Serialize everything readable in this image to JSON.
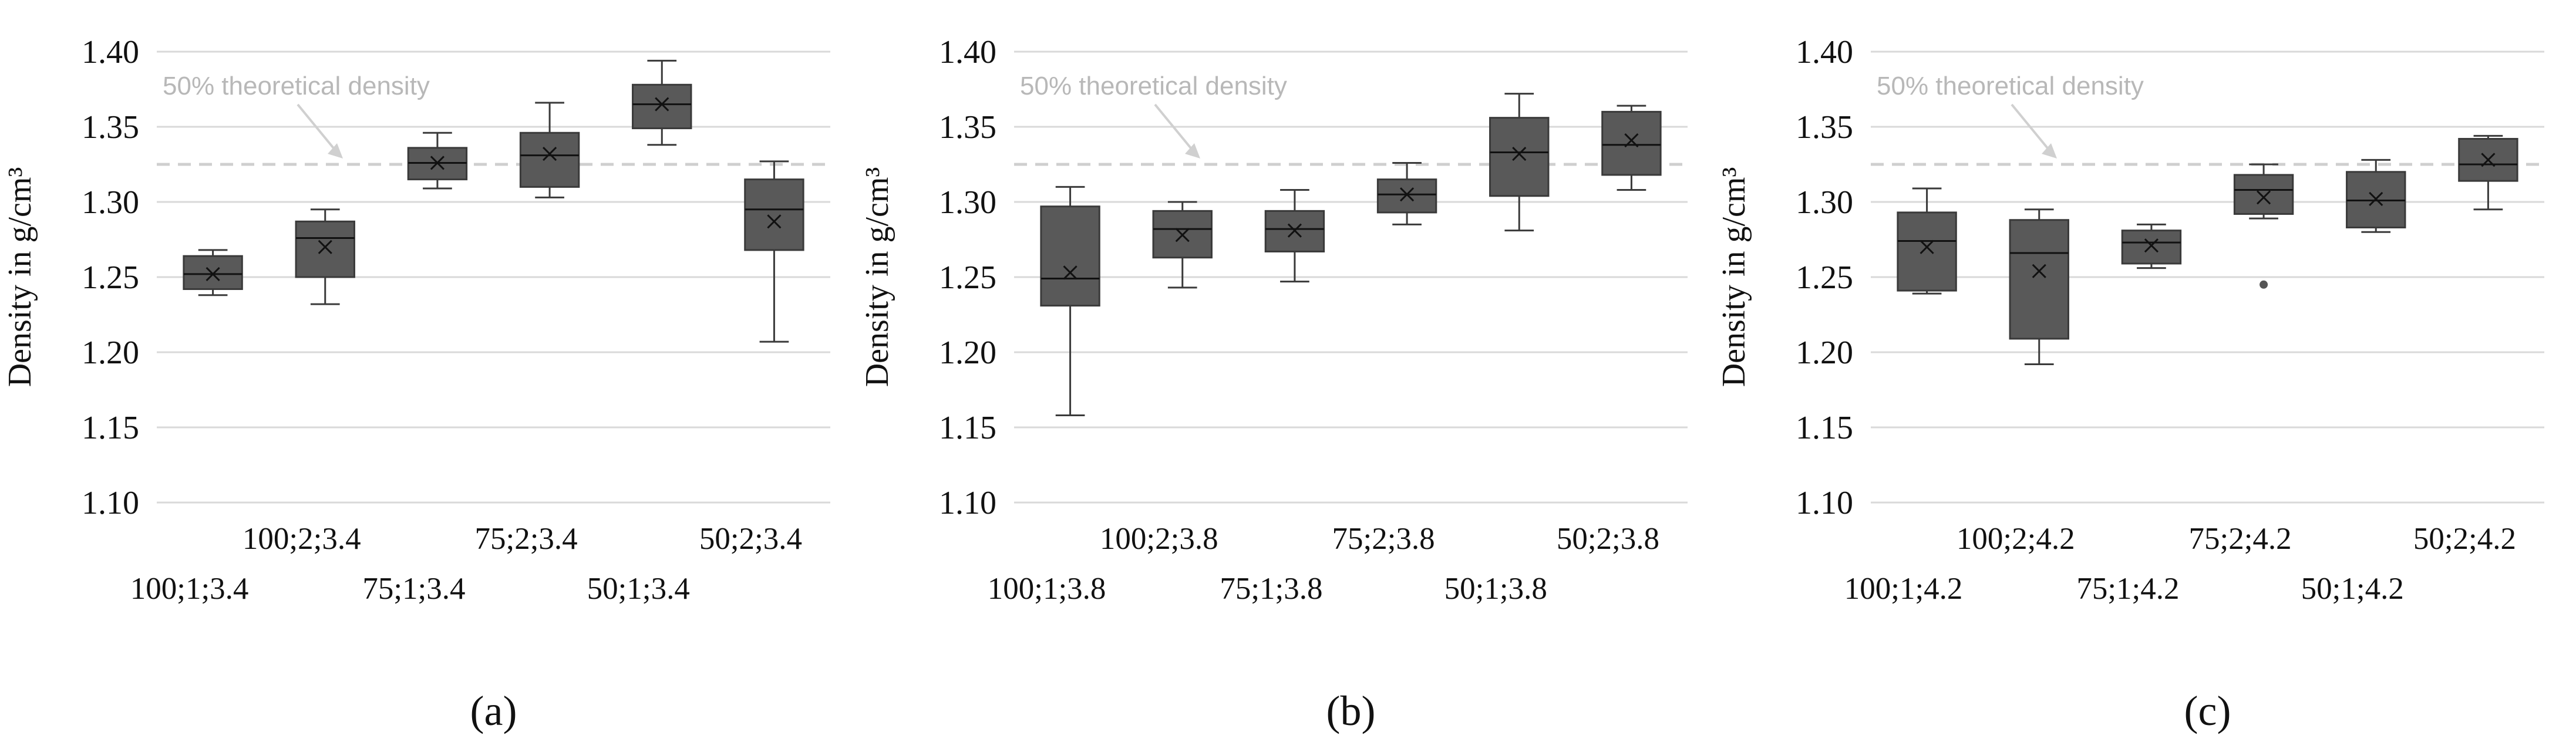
{
  "chart_data": [
    {
      "type": "box",
      "panel_label": "(a)",
      "ylabel": "Density in g/cm³",
      "ylim": [
        1.1,
        1.4
      ],
      "yticks": [
        "1.10",
        "1.15",
        "1.20",
        "1.25",
        "1.30",
        "1.35",
        "1.40"
      ],
      "grid": true,
      "reference_line": {
        "value": 1.325,
        "label": "50% theoretical density"
      },
      "categories": [
        "100;1;3.4",
        "100;2;3.4",
        "75;1;3.4",
        "75;2;3.4",
        "50;1;3.4",
        "50;2;3.4"
      ],
      "boxes": [
        {
          "min": 1.238,
          "q1": 1.242,
          "median": 1.252,
          "q3": 1.264,
          "max": 1.268,
          "mean": 1.252,
          "outliers": []
        },
        {
          "min": 1.232,
          "q1": 1.25,
          "median": 1.276,
          "q3": 1.287,
          "max": 1.295,
          "mean": 1.27,
          "outliers": []
        },
        {
          "min": 1.309,
          "q1": 1.315,
          "median": 1.326,
          "q3": 1.336,
          "max": 1.346,
          "mean": 1.326,
          "outliers": []
        },
        {
          "min": 1.303,
          "q1": 1.31,
          "median": 1.331,
          "q3": 1.346,
          "max": 1.366,
          "mean": 1.332,
          "outliers": []
        },
        {
          "min": 1.338,
          "q1": 1.349,
          "median": 1.365,
          "q3": 1.378,
          "max": 1.394,
          "mean": 1.365,
          "outliers": []
        },
        {
          "min": 1.207,
          "q1": 1.268,
          "median": 1.295,
          "q3": 1.315,
          "max": 1.327,
          "mean": 1.287,
          "outliers": []
        }
      ]
    },
    {
      "type": "box",
      "panel_label": "(b)",
      "ylabel": "Density in g/cm³",
      "ylim": [
        1.1,
        1.4
      ],
      "yticks": [
        "1.10",
        "1.15",
        "1.20",
        "1.25",
        "1.30",
        "1.35",
        "1.40"
      ],
      "grid": true,
      "reference_line": {
        "value": 1.325,
        "label": "50% theoretical density"
      },
      "categories": [
        "100;1;3.8",
        "100;2;3.8",
        "75;1;3.8",
        "75;2;3.8",
        "50;1;3.8",
        "50;2;3.8"
      ],
      "boxes": [
        {
          "min": 1.158,
          "q1": 1.231,
          "median": 1.249,
          "q3": 1.297,
          "max": 1.31,
          "mean": 1.253,
          "outliers": []
        },
        {
          "min": 1.243,
          "q1": 1.263,
          "median": 1.282,
          "q3": 1.294,
          "max": 1.3,
          "mean": 1.278,
          "outliers": []
        },
        {
          "min": 1.247,
          "q1": 1.267,
          "median": 1.282,
          "q3": 1.294,
          "max": 1.308,
          "mean": 1.281,
          "outliers": []
        },
        {
          "min": 1.285,
          "q1": 1.293,
          "median": 1.305,
          "q3": 1.315,
          "max": 1.326,
          "mean": 1.305,
          "outliers": []
        },
        {
          "min": 1.281,
          "q1": 1.304,
          "median": 1.333,
          "q3": 1.356,
          "max": 1.372,
          "mean": 1.332,
          "outliers": []
        },
        {
          "min": 1.308,
          "q1": 1.318,
          "median": 1.338,
          "q3": 1.36,
          "max": 1.364,
          "mean": 1.341,
          "outliers": []
        }
      ]
    },
    {
      "type": "box",
      "panel_label": "(c)",
      "ylabel": "Density in g/cm³",
      "ylim": [
        1.1,
        1.4
      ],
      "yticks": [
        "1.10",
        "1.15",
        "1.20",
        "1.25",
        "1.30",
        "1.35",
        "1.40"
      ],
      "grid": true,
      "reference_line": {
        "value": 1.325,
        "label": "50% theoretical density"
      },
      "categories": [
        "100;1;4.2",
        "100;2;4.2",
        "75;1;4.2",
        "75;2;4.2",
        "50;1;4.2",
        "50;2;4.2"
      ],
      "boxes": [
        {
          "min": 1.239,
          "q1": 1.241,
          "median": 1.274,
          "q3": 1.293,
          "max": 1.309,
          "mean": 1.27,
          "outliers": []
        },
        {
          "min": 1.192,
          "q1": 1.209,
          "median": 1.266,
          "q3": 1.288,
          "max": 1.295,
          "mean": 1.254,
          "outliers": []
        },
        {
          "min": 1.256,
          "q1": 1.259,
          "median": 1.273,
          "q3": 1.281,
          "max": 1.285,
          "mean": 1.271,
          "outliers": []
        },
        {
          "min": 1.289,
          "q1": 1.292,
          "median": 1.308,
          "q3": 1.318,
          "max": 1.325,
          "mean": 1.303,
          "outliers": [
            1.245
          ]
        },
        {
          "min": 1.28,
          "q1": 1.283,
          "median": 1.301,
          "q3": 1.32,
          "max": 1.328,
          "mean": 1.302,
          "outliers": []
        },
        {
          "min": 1.295,
          "q1": 1.314,
          "median": 1.325,
          "q3": 1.342,
          "max": 1.344,
          "mean": 1.328,
          "outliers": []
        }
      ]
    }
  ]
}
